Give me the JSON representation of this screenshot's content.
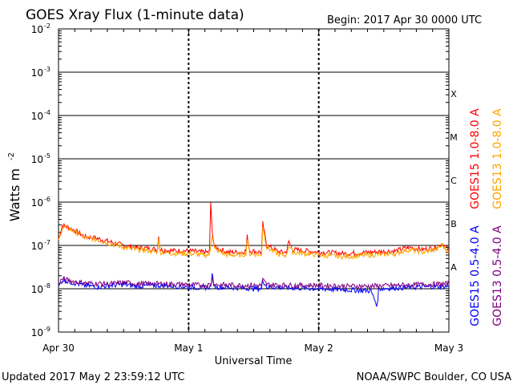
{
  "chart_data": {
    "type": "line",
    "title": "GOES Xray Flux (1-minute data)",
    "begin_label": "Begin:  2017 Apr 30 0000 UTC",
    "ylabel": "Watts m",
    "ylabel_sup": "-2",
    "xlabel": "Universal Time",
    "yscale": "log",
    "ylim": [
      1e-09,
      0.01
    ],
    "y_ticks": [
      {
        "base": "10",
        "exp": "-9",
        "value": 1e-09
      },
      {
        "base": "10",
        "exp": "-8",
        "value": 1e-08
      },
      {
        "base": "10",
        "exp": "-7",
        "value": 1e-07
      },
      {
        "base": "10",
        "exp": "-6",
        "value": 1e-06
      },
      {
        "base": "10",
        "exp": "-5",
        "value": 1e-05
      },
      {
        "base": "10",
        "exp": "-4",
        "value": 0.0001
      },
      {
        "base": "10",
        "exp": "-3",
        "value": 0.001
      },
      {
        "base": "10",
        "exp": "-2",
        "value": 0.01
      }
    ],
    "x_ticks": [
      {
        "label": "Apr 30",
        "day": 0
      },
      {
        "label": "May 1",
        "day": 1
      },
      {
        "label": "May 2",
        "day": 2
      },
      {
        "label": "May 3",
        "day": 3
      }
    ],
    "flare_classes": [
      {
        "label": "A",
        "low": 1e-08,
        "high": 1e-07
      },
      {
        "label": "B",
        "low": 1e-07,
        "high": 1e-06
      },
      {
        "label": "C",
        "low": 1e-06,
        "high": 1e-05
      },
      {
        "label": "M",
        "low": 1e-05,
        "high": 0.0001
      },
      {
        "label": "X",
        "low": 0.0001,
        "high": 0.001
      }
    ],
    "grid": "horizontal lines at each decade 1e-8 to 1e-3; dotted vertical lines at each day boundary",
    "series": [
      {
        "name": "GOES15 1.0-8.0 A",
        "color": "#ff0000",
        "points": [
          [
            0.0,
            1.4e-07
          ],
          [
            0.03,
            2.9e-07
          ],
          [
            0.08,
            2.6e-07
          ],
          [
            0.15,
            2e-07
          ],
          [
            0.2,
            1.6e-07
          ],
          [
            0.3,
            1.45e-07
          ],
          [
            0.4,
            1.2e-07
          ],
          [
            0.5,
            1e-07
          ],
          [
            0.6,
            9e-08
          ],
          [
            0.7,
            8.5e-08
          ],
          [
            0.76,
            8e-08
          ],
          [
            0.77,
            1.8e-07
          ],
          [
            0.78,
            8e-08
          ],
          [
            0.9,
            7.5e-08
          ],
          [
            1.0,
            7.5e-08
          ],
          [
            1.1,
            7e-08
          ],
          [
            1.16,
            7e-08
          ],
          [
            1.17,
            1e-06
          ],
          [
            1.18,
            2.2e-07
          ],
          [
            1.2,
            9e-08
          ],
          [
            1.3,
            7e-08
          ],
          [
            1.4,
            7e-08
          ],
          [
            1.44,
            7.5e-08
          ],
          [
            1.45,
            1.6e-07
          ],
          [
            1.47,
            7.5e-08
          ],
          [
            1.56,
            7e-08
          ],
          [
            1.57,
            3.2e-07
          ],
          [
            1.6,
            1e-07
          ],
          [
            1.7,
            7e-08
          ],
          [
            1.75,
            7e-08
          ],
          [
            1.77,
            1.2e-07
          ],
          [
            1.8,
            8e-08
          ],
          [
            1.9,
            7.5e-08
          ],
          [
            2.0,
            7e-08
          ],
          [
            2.2,
            6.5e-08
          ],
          [
            2.4,
            7e-08
          ],
          [
            2.6,
            7.5e-08
          ],
          [
            2.65,
            8.5e-08
          ],
          [
            2.7,
            9e-08
          ],
          [
            2.8,
            8e-08
          ],
          [
            2.9,
            9e-08
          ],
          [
            2.95,
            1.1e-07
          ],
          [
            3.0,
            8e-08
          ]
        ]
      },
      {
        "name": "GOES13 1.0-8.0 A",
        "color": "#ffa500",
        "points": [
          [
            0.0,
            1.2e-07
          ],
          [
            0.03,
            2.7e-07
          ],
          [
            0.08,
            2.4e-07
          ],
          [
            0.15,
            1.9e-07
          ],
          [
            0.2,
            1.5e-07
          ],
          [
            0.3,
            1.35e-07
          ],
          [
            0.4,
            1.1e-07
          ],
          [
            0.5,
            9e-08
          ],
          [
            0.6,
            8e-08
          ],
          [
            0.7,
            7.5e-08
          ],
          [
            0.76,
            7e-08
          ],
          [
            0.77,
            1.6e-07
          ],
          [
            0.78,
            7e-08
          ],
          [
            0.9,
            6.5e-08
          ],
          [
            1.0,
            6.5e-08
          ],
          [
            1.1,
            6e-08
          ],
          [
            1.16,
            6e-08
          ],
          [
            1.18,
            1.8e-07
          ],
          [
            1.2,
            8e-08
          ],
          [
            1.3,
            6e-08
          ],
          [
            1.4,
            6e-08
          ],
          [
            1.44,
            6.5e-08
          ],
          [
            1.45,
            1.4e-07
          ],
          [
            1.47,
            6.5e-08
          ],
          [
            1.56,
            6e-08
          ],
          [
            1.57,
            2.8e-07
          ],
          [
            1.6,
            9e-08
          ],
          [
            1.7,
            6e-08
          ],
          [
            1.75,
            6e-08
          ],
          [
            1.77,
            1e-07
          ],
          [
            1.8,
            7e-08
          ],
          [
            1.9,
            6.5e-08
          ],
          [
            2.0,
            6e-08
          ],
          [
            2.2,
            5.5e-08
          ],
          [
            2.4,
            6e-08
          ],
          [
            2.6,
            6.5e-08
          ],
          [
            2.65,
            7.5e-08
          ],
          [
            2.7,
            8e-08
          ],
          [
            2.8,
            7e-08
          ],
          [
            2.9,
            8e-08
          ],
          [
            2.95,
            1e-07
          ],
          [
            3.0,
            7e-08
          ]
        ]
      },
      {
        "name": "GOES15 0.5-4.0 A",
        "color": "#0000ff",
        "points": [
          [
            0.0,
            1.1e-08
          ],
          [
            0.03,
            1.6e-08
          ],
          [
            0.1,
            1.4e-08
          ],
          [
            0.2,
            1.2e-08
          ],
          [
            0.3,
            1.1e-08
          ],
          [
            0.4,
            1.2e-08
          ],
          [
            0.5,
            1.25e-08
          ],
          [
            0.6,
            1.15e-08
          ],
          [
            0.8,
            1.2e-08
          ],
          [
            1.0,
            1.1e-08
          ],
          [
            1.1,
            1.05e-08
          ],
          [
            1.17,
            1.1e-08
          ],
          [
            1.18,
            2e-08
          ],
          [
            1.2,
            1.1e-08
          ],
          [
            1.4,
            1.05e-08
          ],
          [
            1.56,
            1e-08
          ],
          [
            1.57,
            1.6e-08
          ],
          [
            1.6,
            1.1e-08
          ],
          [
            1.8,
            1.05e-08
          ],
          [
            2.0,
            1e-08
          ],
          [
            2.2,
            9.5e-09
          ],
          [
            2.4,
            9e-09
          ],
          [
            2.45,
            4e-09
          ],
          [
            2.46,
            1e-08
          ],
          [
            2.6,
            1.05e-08
          ],
          [
            2.8,
            1.1e-08
          ],
          [
            3.0,
            1.15e-08
          ]
        ]
      },
      {
        "name": "GOES13 0.5-4.0 A",
        "color": "#800080",
        "points": [
          [
            0.0,
            1.3e-08
          ],
          [
            0.03,
            1.7e-08
          ],
          [
            0.1,
            1.5e-08
          ],
          [
            0.2,
            1.35e-08
          ],
          [
            0.4,
            1.3e-08
          ],
          [
            0.5,
            1.4e-08
          ],
          [
            0.6,
            1.3e-08
          ],
          [
            0.8,
            1.3e-08
          ],
          [
            1.0,
            1.25e-08
          ],
          [
            1.1,
            1.2e-08
          ],
          [
            1.17,
            1.25e-08
          ],
          [
            1.18,
            1.8e-08
          ],
          [
            1.2,
            1.25e-08
          ],
          [
            1.4,
            1.2e-08
          ],
          [
            1.56,
            1.2e-08
          ],
          [
            1.57,
            1.6e-08
          ],
          [
            1.6,
            1.25e-08
          ],
          [
            1.8,
            1.2e-08
          ],
          [
            2.0,
            1.2e-08
          ],
          [
            2.2,
            1.15e-08
          ],
          [
            2.4,
            1.15e-08
          ],
          [
            2.6,
            1.2e-08
          ],
          [
            2.8,
            1.25e-08
          ],
          [
            3.0,
            1.3e-08
          ]
        ]
      }
    ]
  },
  "footer": {
    "updated": "Updated 2017 May  2 23:59:12 UTC",
    "credit": "NOAA/SWPC Boulder, CO USA"
  }
}
